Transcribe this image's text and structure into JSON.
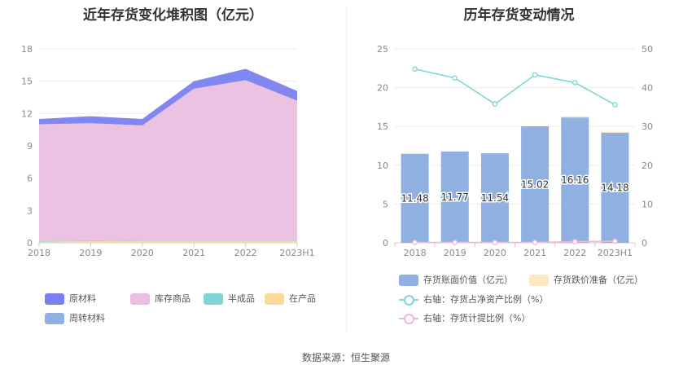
{
  "left_chart": {
    "title": "近年存货变化堆积图（亿元）",
    "legend": [
      {
        "name": "原材料",
        "color": "#7b7ff0"
      },
      {
        "name": "库存商品",
        "color": "#ebbfe0"
      },
      {
        "name": "半成品",
        "color": "#80d6d6"
      },
      {
        "name": "在产品",
        "color": "#fdd99a"
      },
      {
        "name": "周转材料",
        "color": "#8fb0e0"
      }
    ]
  },
  "right_chart": {
    "title": "历年存货变动情况",
    "legend": [
      {
        "name": "存货账面价值（亿元）",
        "color": "#8fb0e0",
        "kind": "bar"
      },
      {
        "name": "存货跌价准备（亿元）",
        "color": "#fde8c4",
        "kind": "bar"
      },
      {
        "name": "右轴：存货占净资产比例（%）",
        "color": "#80d6d6",
        "kind": "line"
      },
      {
        "name": "右轴：存货计提比例（%）",
        "color": "#f0b8d8",
        "kind": "line"
      }
    ]
  },
  "chart_data": [
    {
      "type": "area",
      "title": "近年存货变化堆积图（亿元）",
      "stacked": true,
      "x": [
        "2018",
        "2019",
        "2020",
        "2021",
        "2022",
        "2023H1"
      ],
      "ylim": [
        0,
        18
      ],
      "yticks": [
        0,
        3,
        6,
        9,
        12,
        15,
        18
      ],
      "series": [
        {
          "name": "在产品",
          "color": "#fdd99a",
          "values": [
            0.1,
            0.15,
            0.2,
            0.2,
            0.2,
            0.2
          ]
        },
        {
          "name": "半成品",
          "color": "#80d6d6",
          "values": [
            0.05,
            0.05,
            0.05,
            0.05,
            0.05,
            0.05
          ]
        },
        {
          "name": "周转材料",
          "color": "#8fb0e0",
          "values": [
            0.02,
            0.02,
            0.02,
            0.02,
            0.02,
            0.02
          ]
        },
        {
          "name": "库存商品",
          "color": "#ebbfe0",
          "values": [
            10.83,
            10.88,
            10.63,
            14.03,
            14.83,
            12.93
          ]
        },
        {
          "name": "原材料",
          "color": "#7b7ff0",
          "values": [
            0.5,
            0.65,
            0.6,
            0.7,
            1.05,
            0.9
          ]
        }
      ],
      "legend_position": "bottom"
    },
    {
      "type": "bar",
      "title": "历年存货变动情况",
      "categories": [
        "2018",
        "2019",
        "2020",
        "2021",
        "2022",
        "2023H1"
      ],
      "ylim": [
        0,
        25
      ],
      "yticks": [
        0,
        5,
        10,
        15,
        20,
        25
      ],
      "y2lim": [
        0,
        50
      ],
      "y2ticks": [
        0,
        10,
        20,
        30,
        40,
        50
      ],
      "series": [
        {
          "name": "存货账面价值（亿元）",
          "type": "bar",
          "color": "#8fb0e0",
          "values": [
            11.48,
            11.77,
            11.54,
            15.02,
            16.16,
            14.18
          ],
          "labels": [
            "11.48",
            "11.77",
            "11.54",
            "15.02",
            "16.16",
            "14.18"
          ]
        },
        {
          "name": "存货跌价准备（亿元）",
          "type": "bar",
          "color": "#fde8c4",
          "values": [
            0.0,
            0.0,
            0.0,
            0.0,
            0.05,
            0.05
          ]
        },
        {
          "name": "右轴：存货占净资产比例（%）",
          "type": "line",
          "axis": "right",
          "color": "#80d6d6",
          "values": [
            44.8,
            42.5,
            35.8,
            43.3,
            41.3,
            35.6
          ]
        },
        {
          "name": "右轴：存货计提比例（%）",
          "type": "line",
          "axis": "right",
          "color": "#f0b8d8",
          "values": [
            0.1,
            0.1,
            0.1,
            0.1,
            0.3,
            0.4
          ]
        }
      ],
      "legend_position": "bottom"
    }
  ],
  "footer": {
    "source": "数据来源：恒生聚源"
  }
}
